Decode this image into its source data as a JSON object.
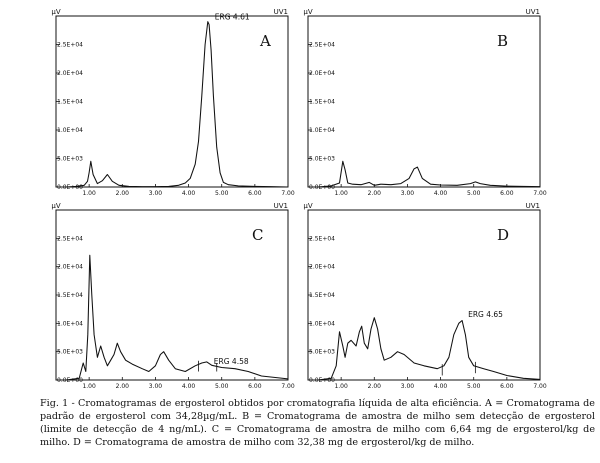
{
  "caption": "Fig. 1 - Cromatogramas de ergosterol obtidos por cromatografia líquida de alta eficiência. A = Cromatograma de padrão de ergosterol com 34,28µg/mL. B = Cromatograma de amostra de milho sem detecção de ergosterol (limite de detecção de 4 ng/mL). C = Cromatograma de amostra de milho com 6,64 mg de ergosterol/kg de milho. D = Cromatograma de amostra de milho com 32,38 mg de ergosterol/kg de milho.",
  "chart_data": [
    {
      "type": "line",
      "panel": "A",
      "y_unit": "µV",
      "channel": "UV1",
      "xlim": [
        0,
        7
      ],
      "ylim": [
        0,
        30000
      ],
      "x_ticks": [
        "1.00",
        "2.00",
        "3.00",
        "4.00",
        "5.00",
        "6.00",
        "7.00"
      ],
      "y_ticks": [
        "0.0E+00",
        "5.0E+03",
        "1.0E+04",
        "1.5E+04",
        "2.0E+04",
        "2.5E+04"
      ],
      "peak_label": {
        "text": "ERG 4.61",
        "x": 4.61,
        "y": 29000
      },
      "series": [
        {
          "x": [
            0.3,
            0.6,
            0.85,
            0.95,
            1.0,
            1.05,
            1.12,
            1.25,
            1.4,
            1.55,
            1.7,
            1.9,
            2.2,
            2.6,
            3.0,
            3.4,
            3.7,
            3.9,
            4.05,
            4.2,
            4.3,
            4.4,
            4.5,
            4.58,
            4.62,
            4.68,
            4.75,
            4.85,
            4.95,
            5.05,
            5.2,
            5.5,
            6.0,
            6.5,
            7.0
          ],
          "y": [
            0,
            100,
            300,
            1000,
            2500,
            4500,
            2200,
            600,
            1100,
            2200,
            1000,
            300,
            100,
            50,
            50,
            100,
            300,
            700,
            1500,
            4000,
            8000,
            16000,
            25000,
            29000,
            28500,
            24000,
            16000,
            7000,
            2500,
            800,
            400,
            200,
            100,
            50,
            0
          ]
        }
      ]
    },
    {
      "type": "line",
      "panel": "B",
      "y_unit": "µV",
      "channel": "UV1",
      "xlim": [
        0,
        7
      ],
      "ylim": [
        0,
        30000
      ],
      "x_ticks": [
        "1.00",
        "2.00",
        "3.00",
        "4.00",
        "5.00",
        "6.00",
        "7.00"
      ],
      "y_ticks": [
        "0.0E+00",
        "5.0E+03",
        "1.0E+04",
        "1.5E+04",
        "2.0E+04",
        "2.5E+04"
      ],
      "series": [
        {
          "x": [
            0.3,
            0.7,
            0.95,
            1.05,
            1.12,
            1.2,
            1.35,
            1.6,
            1.85,
            2.0,
            2.2,
            2.5,
            2.8,
            3.05,
            3.2,
            3.3,
            3.45,
            3.7,
            4.0,
            4.5,
            4.9,
            5.05,
            5.2,
            5.5,
            6.0,
            6.5,
            7.0
          ],
          "y": [
            0,
            200,
            700,
            4500,
            3000,
            700,
            500,
            400,
            800,
            300,
            500,
            400,
            600,
            1500,
            3200,
            3500,
            1500,
            500,
            350,
            300,
            600,
            900,
            600,
            300,
            150,
            100,
            50
          ]
        }
      ]
    },
    {
      "type": "line",
      "panel": "C",
      "y_unit": "µV",
      "channel": "UV1",
      "xlim": [
        0,
        7
      ],
      "ylim": [
        0,
        30000
      ],
      "x_ticks": [
        "1.00",
        "2.00",
        "3.00",
        "4.00",
        "5.00",
        "6.00",
        "7.00"
      ],
      "y_ticks": [
        "0.0E+00",
        "5.0E+03",
        "1.0E+04",
        "1.5E+04",
        "2.0E+04",
        "2.5E+04"
      ],
      "peak_label": {
        "text": "ERG 4.58",
        "x": 4.58,
        "y": 2500
      },
      "series": [
        {
          "x": [
            0.3,
            0.7,
            0.82,
            0.9,
            0.96,
            1.02,
            1.08,
            1.15,
            1.25,
            1.35,
            1.45,
            1.55,
            1.65,
            1.75,
            1.85,
            1.95,
            2.1,
            2.3,
            2.6,
            2.8,
            3.0,
            3.15,
            3.25,
            3.4,
            3.6,
            3.9,
            4.2,
            4.4,
            4.55,
            4.7,
            5.0,
            5.4,
            5.8,
            6.2,
            7.0
          ],
          "y": [
            0,
            300,
            3000,
            1500,
            8000,
            22000,
            15000,
            8000,
            4000,
            6000,
            4000,
            2500,
            3500,
            4500,
            6500,
            5000,
            3500,
            2800,
            2000,
            1500,
            2500,
            4500,
            5000,
            3500,
            2000,
            1500,
            2500,
            3000,
            3200,
            2600,
            2200,
            2000,
            1500,
            700,
            200
          ]
        }
      ]
    },
    {
      "type": "line",
      "panel": "D",
      "y_unit": "µV",
      "channel": "UV1",
      "xlim": [
        0,
        7
      ],
      "ylim": [
        0,
        30000
      ],
      "x_ticks": [
        "1.00",
        "2.00",
        "3.00",
        "4.00",
        "5.00",
        "6.00",
        "7.00"
      ],
      "y_ticks": [
        "0.0E+00",
        "5.0E+03",
        "1.0E+04",
        "1.5E+04",
        "2.0E+04",
        "2.5E+04"
      ],
      "peak_label": {
        "text": "ERG 4.65",
        "x": 4.65,
        "y": 10800
      },
      "series": [
        {
          "x": [
            0.3,
            0.7,
            0.85,
            0.95,
            1.05,
            1.12,
            1.2,
            1.3,
            1.45,
            1.55,
            1.62,
            1.7,
            1.8,
            1.9,
            2.0,
            2.1,
            2.2,
            2.3,
            2.5,
            2.7,
            2.9,
            3.2,
            3.5,
            3.9,
            4.1,
            4.25,
            4.4,
            4.55,
            4.65,
            4.75,
            4.85,
            5.0,
            5.3,
            5.6,
            6.0,
            6.5,
            7.0
          ],
          "y": [
            0,
            300,
            2500,
            8500,
            6000,
            4000,
            6500,
            7000,
            6000,
            8500,
            9500,
            6500,
            5500,
            9000,
            11000,
            9000,
            5500,
            3500,
            4000,
            5000,
            4500,
            3000,
            2500,
            2000,
            2500,
            4000,
            8000,
            10000,
            10500,
            8000,
            4000,
            2500,
            2000,
            1500,
            800,
            300,
            100
          ]
        }
      ]
    }
  ]
}
